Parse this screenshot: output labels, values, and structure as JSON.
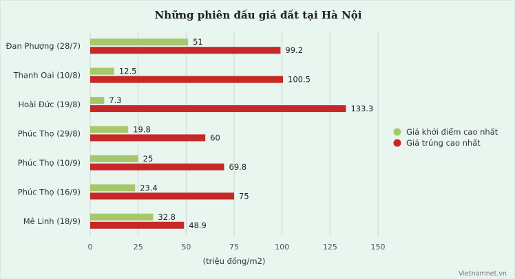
{
  "chart_data": {
    "type": "bar",
    "orientation": "horizontal",
    "title": "Những phiên đấu giá đất tại Hà Nội",
    "categories": [
      "Đan Phượng (28/7)",
      "Thanh Oai (10/8)",
      "Hoài Đức (19/8)",
      "Phúc Thọ (29/8)",
      "Phúc Thọ (10/9)",
      "Phúc Thọ (16/9)",
      "Mê Linh (18/9)"
    ],
    "series": [
      {
        "name": "Giá khởi điểm cao nhất",
        "color": "#a5c86a",
        "values": [
          51,
          12.5,
          7.3,
          19.8,
          25,
          23.4,
          32.8
        ],
        "labels": [
          "51",
          "12.5",
          "7.3",
          "19.8",
          "25",
          "23.4",
          "32.8"
        ]
      },
      {
        "name": "Giá trúng cao nhất",
        "color": "#c62828",
        "values": [
          99.2,
          100.5,
          133.3,
          60,
          69.8,
          75,
          48.9
        ],
        "labels": [
          "99.2",
          "100.5",
          "133.3",
          "60",
          "69.8",
          "75",
          "48.9"
        ]
      }
    ],
    "xlabel": "(triệu đồng/m2)",
    "xlim": [
      0,
      150
    ],
    "xticks": [
      0,
      25,
      50,
      75,
      100,
      125,
      150
    ],
    "xtick_labels": [
      "0",
      "25",
      "50",
      "75",
      "100",
      "125",
      "150"
    ],
    "grid": "vertical",
    "legend_position": "right"
  },
  "credit": "Vietnamnet.vn"
}
